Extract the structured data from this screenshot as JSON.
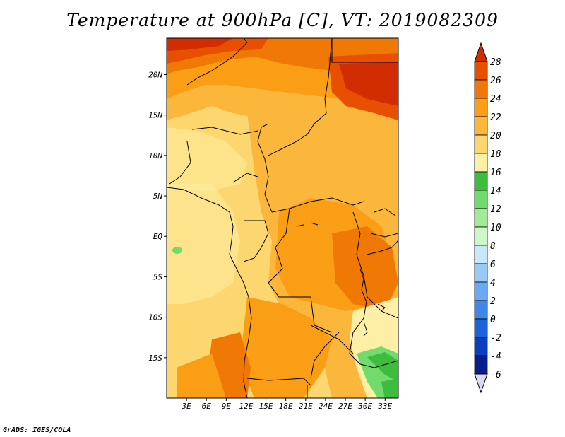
{
  "title": "Temperature at 900hPa [C], VT: 2019082309",
  "footer": "GrADS: IGES/COLA",
  "map": {
    "lon_range": [
      0,
      35
    ],
    "lat_range": [
      -20,
      24.5
    ],
    "lat_ticks": [
      {
        "value": 20,
        "label": "20N"
      },
      {
        "value": 15,
        "label": "15N"
      },
      {
        "value": 10,
        "label": "10N"
      },
      {
        "value": 5,
        "label": "5N"
      },
      {
        "value": 0,
        "label": "EQ"
      },
      {
        "value": -5,
        "label": "5S"
      },
      {
        "value": -10,
        "label": "10S"
      },
      {
        "value": -15,
        "label": "15S"
      }
    ],
    "lon_ticks": [
      {
        "value": 3,
        "label": "3E"
      },
      {
        "value": 6,
        "label": "6E"
      },
      {
        "value": 9,
        "label": "9E"
      },
      {
        "value": 12,
        "label": "12E"
      },
      {
        "value": 15,
        "label": "15E"
      },
      {
        "value": 18,
        "label": "18E"
      },
      {
        "value": 21,
        "label": "21E"
      },
      {
        "value": 24,
        "label": "24E"
      },
      {
        "value": 27,
        "label": "27E"
      },
      {
        "value": 30,
        "label": "30E"
      },
      {
        "value": 33,
        "label": "33E"
      }
    ]
  },
  "colorbar": {
    "labels": [
      "28",
      "26",
      "24",
      "22",
      "20",
      "18",
      "16",
      "14",
      "12",
      "10",
      "8",
      "6",
      "4",
      "2",
      "0",
      "-2",
      "-4",
      "-6"
    ],
    "colors": [
      "#d12d00",
      "#e84f00",
      "#f07804",
      "#f99e15",
      "#fbb73c",
      "#fcd66e",
      "#fdf0a6",
      "#3dbc3d",
      "#71db6e",
      "#a1eb98",
      "#ccf8c8",
      "#c7e7fb",
      "#97cbf6",
      "#6baaf2",
      "#4088e7",
      "#1a63dc",
      "#0a40bf",
      "#05208a",
      "#0a0f5e"
    ],
    "top_color": "#d12d00",
    "bottom_color": "#dcd8f5"
  }
}
